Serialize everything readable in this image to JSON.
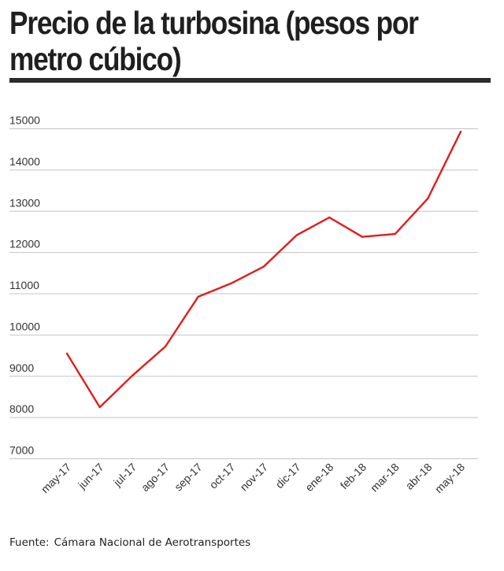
{
  "header": {
    "title": "Precio de la turbosina (pesos por metro cúbico)"
  },
  "source": {
    "label": "Fuente:",
    "text": "Cámara Nacional de Aerotransportes"
  },
  "colors": {
    "line": "#e31c1c",
    "grid": "#c4c4c4",
    "text": "#333333"
  },
  "chart_data": {
    "type": "line",
    "title": "Precio de la turbosina (pesos por metro cúbico)",
    "xlabel": "",
    "ylabel": "",
    "categories": [
      "may-17",
      "jun-17",
      "jul-17",
      "ago-17",
      "sep-17",
      "oct-17",
      "nov-17",
      "dic-17",
      "ene-18",
      "feb-18",
      "mar-18",
      "abr-18",
      "may-18"
    ],
    "series": [
      {
        "values": [
          9550,
          8250,
          9020,
          9720,
          10930,
          11250,
          11660,
          12420,
          12850,
          12380,
          12450,
          13310,
          14930
        ]
      }
    ],
    "ylim": [
      7000,
      15000
    ],
    "yticks": [
      7000,
      8000,
      9000,
      10000,
      11000,
      12000,
      13000,
      14000,
      15000
    ],
    "grid": true,
    "legend": "none"
  }
}
